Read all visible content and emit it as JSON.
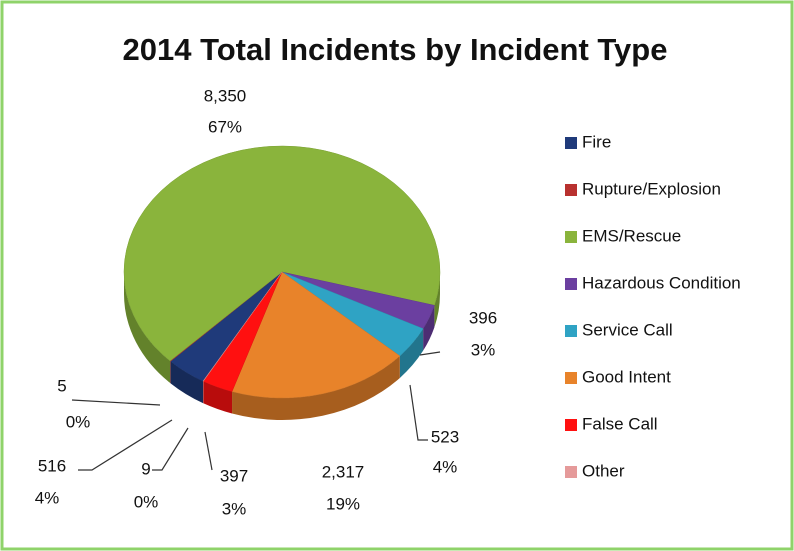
{
  "chart_data": {
    "type": "pie",
    "title": "2014 Total Incidents by Incident Type",
    "categories": [
      "Fire",
      "Rupture/Explosion",
      "EMS/Rescue",
      "Hazardous Condition",
      "Service Call",
      "Good Intent",
      "False Call",
      "Other"
    ],
    "values": [
      516,
      9,
      8350,
      396,
      523,
      2317,
      397,
      5
    ],
    "value_labels": [
      "516",
      "9",
      "8,350",
      "396",
      "523",
      "2,317",
      "397",
      "5"
    ],
    "percents": [
      4,
      0,
      67,
      3,
      4,
      19,
      3,
      0
    ],
    "percent_labels": [
      "4%",
      "0%",
      "67%",
      "3%",
      "4%",
      "19%",
      "3%",
      "0%"
    ],
    "colors": [
      "#1f3a7a",
      "#b8312f",
      "#8ab43c",
      "#6b3fa0",
      "#2fa3c4",
      "#e8832a",
      "#ff1010",
      "#e59a9a"
    ],
    "legend": "right"
  }
}
